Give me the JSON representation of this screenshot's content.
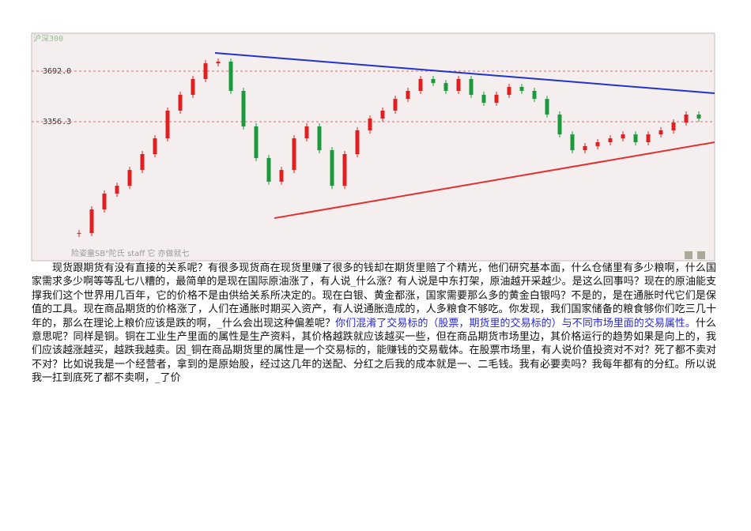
{
  "chart_data": {
    "type": "candlestick",
    "title": "沪深300",
    "caption": "险姿童SB\"陀氏 staff 它 亦做就七",
    "ylim": [
      2433,
      3944
    ],
    "yticks": [
      {
        "value": 3692,
        "label": "3692.0"
      },
      {
        "value": 3356.3,
        "label": "3356.3"
      }
    ],
    "up_color": "#e02020",
    "down_color": "#1a9a3a",
    "grid": true,
    "values": [
      2617,
      2774,
      2879,
      2931,
      3036,
      3141,
      3246,
      3430,
      3535,
      3640,
      3744,
      3755,
      3561,
      3325,
      3115,
      2958,
      3036,
      3246,
      3325,
      3167,
      2931,
      3141,
      3299,
      3377,
      3430,
      3508,
      3561,
      3640,
      3613,
      3561,
      3640,
      3535,
      3482,
      3535,
      3587,
      3561,
      3508,
      3404,
      3272,
      3167,
      3194,
      3220,
      3246,
      3272,
      3220,
      3272,
      3299,
      3351,
      3404,
      3377
    ],
    "trendlines": [
      {
        "color": "#2233cc",
        "values": [
          3813,
          3545
        ]
      },
      {
        "color": "#e03030",
        "values": [
          2716,
          3220
        ]
      }
    ]
  },
  "paragraph": [
    {
      "text": "现货跟期货有没有直接的关系呢？有很多现货商在现货里赚了很多的钱却在期货里赔了个精光，他们研究基本面，什么仓储里有多少粮啊，什么国家需求多少啊等等乱七八糟的，最简单的是现在国际原油涨了，有人说_什么涨？有人说是中东打架，原油越开采越少。是这么回事吗？现在的原油能支撑我们这个世界用几百年，它的价格不是由供给关系所决定的。现在白银、黄金都涨，国家需要那么多的黄金白银吗？不是的，是在通胀时代它们是保值的工具。现在商品期货的价格涨了，人们在通胀时期买入资产，有人说通胀造成的，人多粮食不够吃。你发现，我们国家储备的粮食够你们吃三几十年的，那么在理论上粮价应该是跌的啊，_什么会出现这种偏差呢？"
    },
    {
      "text": "你们混淆了交易标的（股票，期货里的交易标的）与不同市场里面的交易属性。",
      "color": "#2a2acc"
    },
    {
      "text": "什么意思呢？同样是铜。铜在工业生产里面的属性是生产资料，其价格越跌就应该越买一些，但在商品期货市场里边，其价格运行的趋势如果是向上的，我们应该越涨越买，越跌我越卖。因_铜在商品期货里的属性是一个交易标的，能赚钱的交易载体。在股票市场里，有人说价值投资对不对？死了都不卖对不对？比如说我是一个经营者，拿到的是原始股，经过这几年的送配、分红之后我的成本就是一、二毛钱。我有必要卖吗？我每年都有的分红。所以说我一扛到底死了都不卖啊，_了价"
    }
  ]
}
